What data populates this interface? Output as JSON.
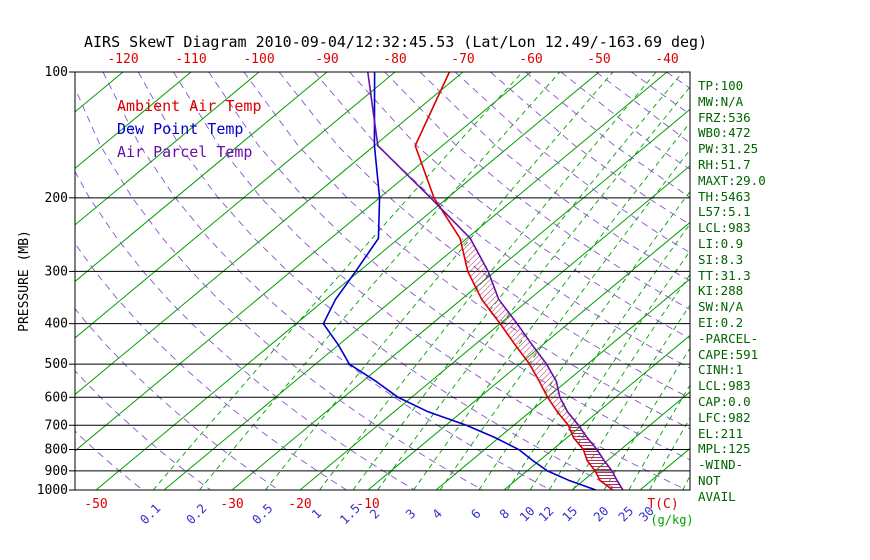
{
  "title": "AIRS SkewT Diagram 2010-09-04/12:32:45.53 (Lat/Lon 12.49/-163.69 deg)",
  "legend": {
    "items": [
      {
        "id": "ambient",
        "label": "Ambient Air Temp",
        "color": "#dd0000"
      },
      {
        "id": "dewpoint",
        "label": "Dew Point Temp",
        "color": "#0000cc"
      },
      {
        "id": "parcel",
        "label": "Air Parcel Temp",
        "color": "#6a0dad"
      }
    ]
  },
  "stats_panel": {
    "color": "#006400",
    "lines": [
      "TP:100",
      "MW:N/A",
      "FRZ:536",
      "WB0:472",
      "PW:31.25",
      "RH:51.7",
      "MAXT:29.0",
      "TH:5463",
      "L57:5.1",
      "LCL:983",
      "LI:0.9",
      "SI:8.3",
      "TT:31.3",
      "KI:288",
      "SW:N/A",
      "EI:0.2",
      "-PARCEL-",
      "CAPE:591",
      "CINH:1",
      "LCL:983",
      "CAP:0.0",
      "LFC:982",
      "EL:211",
      "MPL:125",
      "-WIND-",
      "NOT",
      "AVAIL"
    ]
  },
  "chart_data": {
    "type": "line",
    "subtype": "skewt-log-p",
    "title": "AIRS SkewT Diagram 2010-09-04/12:32:45.53 (Lat/Lon 12.49/-163.69 deg)",
    "y_axis": {
      "label": "PRESSURE (MB)",
      "scale": "log",
      "ticks": [
        100,
        200,
        300,
        400,
        500,
        600,
        700,
        800,
        900,
        1000
      ],
      "range": [
        100,
        1000
      ]
    },
    "top_axis": {
      "ticks": [
        -120,
        -110,
        -100,
        -90,
        -80,
        -70,
        -60,
        -50,
        -40
      ],
      "color": "#dd0000"
    },
    "bottom_axis": {
      "temp_ticks": [
        -50,
        -30,
        -20,
        -10
      ],
      "temp_unit_label": "T(C)",
      "temp_color": "#dd0000",
      "mixing_ratio_ticks": [
        0.1,
        0.2,
        0.5,
        1,
        1.5,
        2,
        3,
        4,
        6,
        8,
        10,
        12,
        15,
        20,
        25,
        30
      ],
      "mixing_ratio_unlabeled": [
        40,
        50
      ],
      "mixing_unit_label": "(g/kg)",
      "mixing_color": "#3333cc",
      "unit_color": "#00a000"
    },
    "grid": {
      "isotherms": {
        "min": -160,
        "max": 40,
        "step": 10,
        "color": "#00a000",
        "style": "solid"
      },
      "mixing_ratio_lines": {
        "color": "#00a000",
        "style": "dashed"
      },
      "dry_adiabats": {
        "theta_min": 220,
        "theta_max": 460,
        "step": 10,
        "color": "#8855cc",
        "style": "dashed"
      },
      "pressure_lines": {
        "color": "#000000"
      }
    },
    "series": [
      {
        "name": "Ambient Air Temp",
        "color": "#dd0000",
        "points": [
          [
            100,
            -72
          ],
          [
            150,
            -64
          ],
          [
            200,
            -52
          ],
          [
            250,
            -41
          ],
          [
            300,
            -34
          ],
          [
            350,
            -27
          ],
          [
            400,
            -20
          ],
          [
            450,
            -14
          ],
          [
            500,
            -8.5
          ],
          [
            550,
            -4
          ],
          [
            600,
            0
          ],
          [
            650,
            4
          ],
          [
            700,
            8
          ],
          [
            750,
            11
          ],
          [
            800,
            14.5
          ],
          [
            850,
            17
          ],
          [
            900,
            20
          ],
          [
            950,
            22.5
          ],
          [
            1000,
            26
          ]
        ]
      },
      {
        "name": "Dew Point Temp",
        "color": "#0000cc",
        "points": [
          [
            100,
            -83
          ],
          [
            150,
            -70
          ],
          [
            200,
            -60
          ],
          [
            250,
            -53
          ],
          [
            300,
            -50.5
          ],
          [
            350,
            -48.5
          ],
          [
            400,
            -46
          ],
          [
            450,
            -40
          ],
          [
            500,
            -35
          ],
          [
            550,
            -28
          ],
          [
            600,
            -22
          ],
          [
            650,
            -15
          ],
          [
            700,
            -7
          ],
          [
            750,
            -0.5
          ],
          [
            800,
            5
          ],
          [
            850,
            9
          ],
          [
            900,
            13
          ],
          [
            950,
            18
          ],
          [
            1000,
            23.5
          ]
        ]
      },
      {
        "name": "Air Parcel Temp",
        "color": "#6a0dad",
        "points": [
          [
            100,
            -84
          ],
          [
            150,
            -69.5
          ],
          [
            200,
            -52.5
          ],
          [
            250,
            -39.5
          ],
          [
            300,
            -31
          ],
          [
            350,
            -24.5
          ],
          [
            400,
            -17.5
          ],
          [
            450,
            -11.5
          ],
          [
            500,
            -6
          ],
          [
            550,
            -1.5
          ],
          [
            600,
            1.8
          ],
          [
            650,
            5.5
          ],
          [
            700,
            9.5
          ],
          [
            750,
            13
          ],
          [
            800,
            16.5
          ],
          [
            850,
            19.5
          ],
          [
            900,
            22.5
          ],
          [
            950,
            25
          ],
          [
            1000,
            27.5
          ]
        ]
      }
    ],
    "cape_hatch": {
      "upper_range": [
        250,
        700
      ],
      "lower_range": [
        700,
        1000
      ],
      "color": "#b03060"
    }
  }
}
